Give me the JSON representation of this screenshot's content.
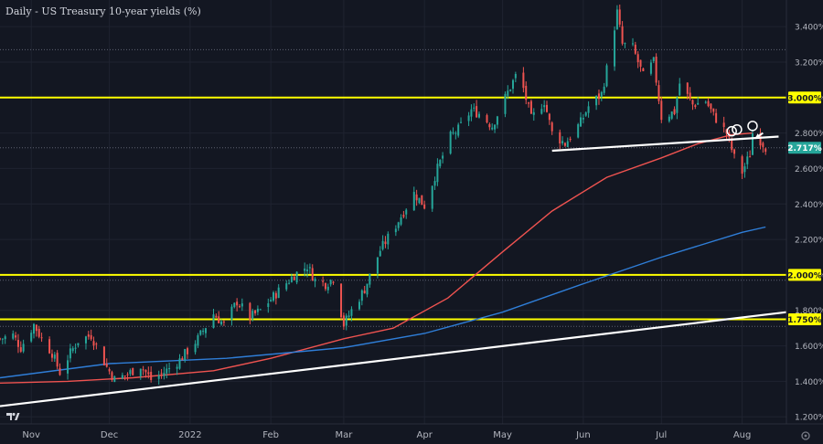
{
  "chart_data": {
    "type": "candlestick",
    "title": "Daily - US Treasury 10-year yields (%)",
    "x_tick_labels": [
      "Nov",
      "Dec",
      "2022",
      "Feb",
      "Mar",
      "Apr",
      "May",
      "Jun",
      "Jul",
      "Aug"
    ],
    "y_tick_labels": [
      "3.400%",
      "3.200%",
      "3.000%",
      "2.800%",
      "2.600%",
      "2.400%",
      "2.200%",
      "2.000%",
      "1.800%",
      "1.600%",
      "1.400%",
      "1.200%"
    ],
    "y_ticks": [
      3.4,
      3.2,
      3.0,
      2.8,
      2.6,
      2.4,
      2.2,
      2.0,
      1.8,
      1.6,
      1.4,
      1.2
    ],
    "ylim": [
      1.16,
      3.55
    ],
    "x_range": [
      "2021-10-20",
      "2022-08-18"
    ],
    "current_price_label": "2.717%",
    "current_price": 2.717,
    "horizontal_levels": [
      {
        "label": "3.000%",
        "value": 3.0,
        "color": "#ffff00"
      },
      {
        "label": "2.000%",
        "value": 2.0,
        "color": "#ffff00"
      },
      {
        "label": "1.750%",
        "value": 1.75,
        "color": "#ffff00"
      }
    ],
    "dotted_reference_levels": [
      3.27,
      2.717,
      1.97,
      1.71
    ],
    "trendlines": [
      {
        "from": [
          "2021-10-20",
          1.26
        ],
        "to": [
          "2022-08-18",
          1.79
        ]
      },
      {
        "from": [
          "2022-05-20",
          2.7
        ],
        "to": [
          "2022-08-15",
          2.78
        ]
      }
    ],
    "moving_averages": [
      {
        "color": "#ef5350",
        "points": [
          [
            "2021-10-20",
            1.39
          ],
          [
            "2021-11-15",
            1.4
          ],
          [
            "2021-12-10",
            1.42
          ],
          [
            "2022-01-10",
            1.46
          ],
          [
            "2022-02-01",
            1.53
          ],
          [
            "2022-03-01",
            1.64
          ],
          [
            "2022-03-20",
            1.7
          ],
          [
            "2022-04-10",
            1.87
          ],
          [
            "2022-05-01",
            2.13
          ],
          [
            "2022-05-20",
            2.36
          ],
          [
            "2022-06-10",
            2.55
          ],
          [
            "2022-07-01",
            2.66
          ],
          [
            "2022-07-15",
            2.74
          ],
          [
            "2022-07-28",
            2.79
          ],
          [
            "2022-08-05",
            2.8
          ]
        ]
      },
      {
        "color": "#2f7ed8",
        "points": [
          [
            "2021-10-20",
            1.42
          ],
          [
            "2021-12-01",
            1.5
          ],
          [
            "2022-01-15",
            1.53
          ],
          [
            "2022-03-01",
            1.59
          ],
          [
            "2022-04-01",
            1.67
          ],
          [
            "2022-05-01",
            1.79
          ],
          [
            "2022-06-01",
            1.95
          ],
          [
            "2022-07-01",
            2.1
          ],
          [
            "2022-08-01",
            2.24
          ],
          [
            "2022-08-10",
            2.27
          ]
        ]
      }
    ],
    "annotation_circles": [
      {
        "date": "2022-07-28",
        "value": 2.81
      },
      {
        "date": "2022-07-30",
        "value": 2.82
      },
      {
        "date": "2022-08-05",
        "value": 2.84
      }
    ],
    "annotation_arrow": {
      "from": [
        "2022-08-09",
        2.8
      ],
      "to": [
        "2022-08-06",
        2.77
      ]
    },
    "anchors": [
      [
        "2021-10-20",
        1.64
      ],
      [
        "2021-10-25",
        1.66
      ],
      [
        "2021-10-28",
        1.59
      ],
      [
        "2021-11-02",
        1.72
      ],
      [
        "2021-11-05",
        1.64
      ],
      [
        "2021-11-09",
        1.56
      ],
      [
        "2021-11-12",
        1.45
      ],
      [
        "2021-11-16",
        1.56
      ],
      [
        "2021-11-19",
        1.63
      ],
      [
        "2021-11-24",
        1.66
      ],
      [
        "2021-11-30",
        1.48
      ],
      [
        "2021-12-03",
        1.41
      ],
      [
        "2021-12-08",
        1.44
      ],
      [
        "2021-12-13",
        1.49
      ],
      [
        "2021-12-17",
        1.41
      ],
      [
        "2021-12-21",
        1.44
      ],
      [
        "2021-12-28",
        1.52
      ],
      [
        "2022-01-04",
        1.64
      ],
      [
        "2022-01-10",
        1.78
      ],
      [
        "2022-01-14",
        1.72
      ],
      [
        "2022-01-19",
        1.85
      ],
      [
        "2022-01-24",
        1.76
      ],
      [
        "2022-01-28",
        1.8
      ],
      [
        "2022-02-04",
        1.91
      ],
      [
        "2022-02-10",
        2.0
      ],
      [
        "2022-02-15",
        2.05
      ],
      [
        "2022-02-18",
        1.97
      ],
      [
        "2022-02-22",
        1.95
      ],
      [
        "2022-02-25",
        1.98
      ],
      [
        "2022-03-01",
        1.72
      ],
      [
        "2022-03-04",
        1.8
      ],
      [
        "2022-03-09",
        1.92
      ],
      [
        "2022-03-15",
        2.14
      ],
      [
        "2022-03-21",
        2.28
      ],
      [
        "2022-03-28",
        2.46
      ],
      [
        "2022-04-01",
        2.39
      ],
      [
        "2022-04-06",
        2.6
      ],
      [
        "2022-04-11",
        2.78
      ],
      [
        "2022-04-14",
        2.82
      ],
      [
        "2022-04-19",
        2.93
      ],
      [
        "2022-04-22",
        2.91
      ],
      [
        "2022-04-27",
        2.84
      ],
      [
        "2022-05-02",
        3.0
      ],
      [
        "2022-05-06",
        3.12
      ],
      [
        "2022-05-09",
        3.05
      ],
      [
        "2022-05-12",
        2.88
      ],
      [
        "2022-05-17",
        2.98
      ],
      [
        "2022-05-20",
        2.8
      ],
      [
        "2022-05-25",
        2.74
      ],
      [
        "2022-05-31",
        2.86
      ],
      [
        "2022-06-03",
        2.95
      ],
      [
        "2022-06-08",
        3.02
      ],
      [
        "2022-06-10",
        3.16
      ],
      [
        "2022-06-14",
        3.48
      ],
      [
        "2022-06-16",
        3.3
      ],
      [
        "2022-06-20",
        3.28
      ],
      [
        "2022-06-24",
        3.12
      ],
      [
        "2022-06-28",
        3.2
      ],
      [
        "2022-07-01",
        2.89
      ],
      [
        "2022-07-06",
        2.92
      ],
      [
        "2022-07-08",
        3.08
      ],
      [
        "2022-07-13",
        2.96
      ],
      [
        "2022-07-18",
        2.98
      ],
      [
        "2022-07-21",
        2.9
      ],
      [
        "2022-07-26",
        2.8
      ],
      [
        "2022-07-29",
        2.66
      ],
      [
        "2022-08-01",
        2.58
      ],
      [
        "2022-08-04",
        2.68
      ],
      [
        "2022-08-05",
        2.8
      ],
      [
        "2022-08-08",
        2.76
      ],
      [
        "2022-08-10",
        2.72
      ]
    ]
  }
}
